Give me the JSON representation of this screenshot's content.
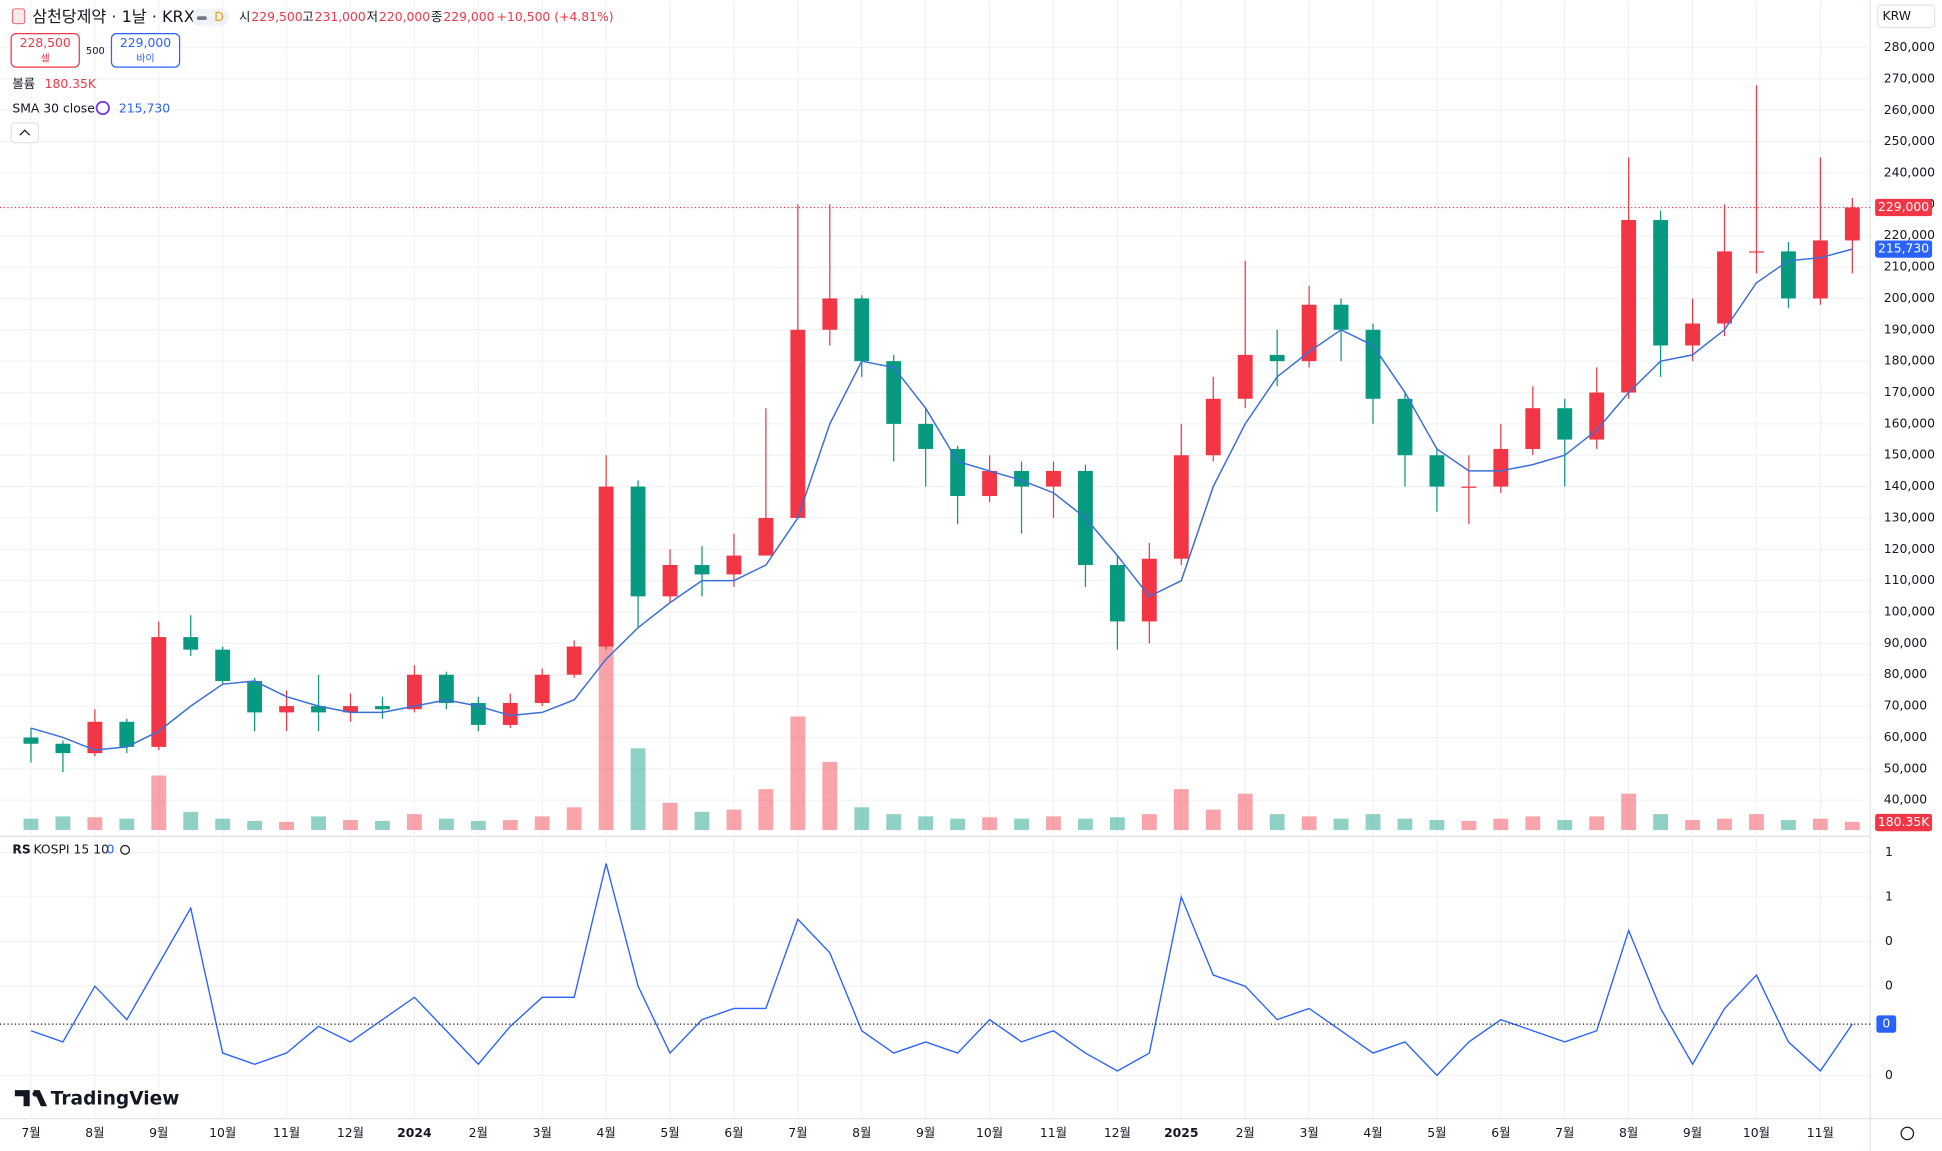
{
  "header": {
    "symbol": "삼천당제약 · 1날 · KRX",
    "interval": "D",
    "ohlc": [
      {
        "key": "시",
        "value": "229,500"
      },
      {
        "key": "고",
        "value": "231,000"
      },
      {
        "key": "저",
        "value": "220,000"
      },
      {
        "key": "종",
        "value": "229,000"
      }
    ],
    "change": "+10,500 (+4.81%)",
    "sell_price": "228,500",
    "sell_label": "셀",
    "spread": "500",
    "buy_price": "229,000",
    "buy_label": "바이",
    "currency": "KRW",
    "brand": "TradingView"
  },
  "chart_data": [
    {
      "type": "candlestick",
      "categories": [
        "7월",
        null,
        "8월",
        null,
        "9월",
        null,
        "10월",
        null,
        "11월",
        null,
        "12월",
        null,
        "2024",
        null,
        "2월",
        null,
        "3월",
        null,
        "4월",
        null,
        "5월",
        null,
        "6월",
        null,
        "7월",
        null,
        "8월",
        null,
        "9월",
        null,
        "10월",
        null,
        "11월",
        null,
        "12월",
        null,
        "2025",
        null,
        "2월",
        null,
        "3월",
        null,
        "4월",
        null,
        "5월",
        null,
        "6월",
        null,
        "7월",
        null,
        "8월",
        null,
        "9월",
        null,
        "10월",
        null,
        "11월",
        null
      ],
      "open": [
        60000,
        58000,
        55000,
        65000,
        57000,
        92000,
        88000,
        78000,
        68000,
        70000,
        68000,
        70000,
        69000,
        80000,
        71000,
        64000,
        71000,
        80000,
        89000,
        140000,
        105000,
        115000,
        112000,
        118000,
        130000,
        190000,
        200000,
        180000,
        160000,
        152000,
        137000,
        145000,
        140000,
        145000,
        115000,
        97000,
        117000,
        150000,
        168000,
        182000,
        180000,
        198000,
        190000,
        168000,
        150000,
        140000,
        140000,
        152000,
        165000,
        155000,
        170000,
        225000,
        185000,
        192000,
        215000,
        215000,
        200000,
        218500
      ],
      "high": [
        63000,
        59000,
        69000,
        66000,
        97000,
        99000,
        89000,
        79000,
        75000,
        80000,
        74000,
        73000,
        83000,
        81000,
        73000,
        74000,
        82000,
        91000,
        150000,
        142000,
        120000,
        121000,
        125000,
        165000,
        230000,
        230000,
        201000,
        182000,
        165000,
        153000,
        150000,
        148000,
        148000,
        147000,
        118000,
        122000,
        160000,
        175000,
        212000,
        190000,
        204000,
        200000,
        192000,
        170000,
        152000,
        150000,
        160000,
        172000,
        168000,
        178000,
        245000,
        228000,
        200000,
        230000,
        268000,
        218000,
        245000,
        232000
      ],
      "low": [
        52000,
        49000,
        54000,
        55000,
        56000,
        86000,
        77000,
        62000,
        62000,
        62000,
        65000,
        66000,
        68000,
        69000,
        62000,
        63000,
        70000,
        79000,
        88000,
        95000,
        103000,
        105000,
        108000,
        118000,
        130000,
        185000,
        175000,
        148000,
        140000,
        128000,
        135000,
        125000,
        130000,
        108000,
        88000,
        90000,
        115000,
        148000,
        165000,
        172000,
        178000,
        180000,
        160000,
        140000,
        132000,
        128000,
        138000,
        150000,
        140000,
        152000,
        168000,
        175000,
        180000,
        188000,
        208000,
        197000,
        198000,
        208000
      ],
      "close": [
        58000,
        55000,
        65000,
        57000,
        92000,
        88000,
        78000,
        68000,
        70000,
        68000,
        70000,
        69000,
        80000,
        71000,
        64000,
        71000,
        80000,
        89000,
        140000,
        105000,
        115000,
        112000,
        118000,
        130000,
        190000,
        200000,
        180000,
        160000,
        152000,
        137000,
        145000,
        140000,
        145000,
        115000,
        97000,
        117000,
        150000,
        168000,
        182000,
        180000,
        198000,
        190000,
        168000,
        150000,
        140000,
        140000,
        152000,
        165000,
        155000,
        170000,
        225000,
        185000,
        192000,
        215000,
        215000,
        200000,
        218500,
        229000
      ],
      "up_color": "#f23645",
      "down_color": "#089981",
      "last_price_label": "229,000",
      "volume": {
        "name": "볼륨",
        "last_label": "180.35K",
        "values": [
          250000,
          300000,
          280000,
          250000,
          1200000,
          400000,
          250000,
          200000,
          180000,
          300000,
          220000,
          200000,
          350000,
          250000,
          200000,
          220000,
          300000,
          500000,
          4500000,
          1800000,
          600000,
          400000,
          450000,
          900000,
          2500000,
          1500000,
          500000,
          350000,
          300000,
          250000,
          280000,
          250000,
          300000,
          250000,
          280000,
          350000,
          900000,
          450000,
          800000,
          350000,
          300000,
          250000,
          350000,
          250000,
          220000,
          200000,
          250000,
          300000,
          220000,
          300000,
          800000,
          350000,
          220000,
          250000,
          350000,
          220000,
          250000,
          180350
        ]
      },
      "series": [
        {
          "name": "SMA 30 close",
          "color": "#3a6fd8",
          "last_label": "215,730",
          "values": [
            63000,
            60000,
            56000,
            57000,
            62000,
            70000,
            77000,
            78000,
            73000,
            70000,
            68000,
            68000,
            70000,
            72000,
            70000,
            67000,
            68000,
            72000,
            85000,
            95000,
            103000,
            110000,
            110000,
            115000,
            130000,
            160000,
            180000,
            178000,
            165000,
            148000,
            145000,
            142000,
            138000,
            130000,
            118000,
            105000,
            110000,
            140000,
            160000,
            175000,
            183000,
            190000,
            185000,
            170000,
            152000,
            145000,
            145000,
            147000,
            150000,
            158000,
            170000,
            180000,
            182000,
            190000,
            205000,
            212000,
            213000,
            215730
          ]
        }
      ],
      "ylim": [
        29700,
        295100
      ],
      "yticks": [
        {
          "value": 40000,
          "label": "40,000"
        },
        {
          "value": 50000,
          "label": "50,000"
        },
        {
          "value": 60000,
          "label": "60,000"
        },
        {
          "value": 70000,
          "label": "70,000"
        },
        {
          "value": 80000,
          "label": "80,000"
        },
        {
          "value": 90000,
          "label": "90,000"
        },
        {
          "value": 100000,
          "label": "100,000"
        },
        {
          "value": 110000,
          "label": "110,000"
        },
        {
          "value": 120000,
          "label": "120,000"
        },
        {
          "value": 130000,
          "label": "130,000"
        },
        {
          "value": 140000,
          "label": "140,000"
        },
        {
          "value": 150000,
          "label": "150,000"
        },
        {
          "value": 160000,
          "label": "160,000"
        },
        {
          "value": 170000,
          "label": "170,000"
        },
        {
          "value": 180000,
          "label": "180,000"
        },
        {
          "value": 190000,
          "label": "190,000"
        },
        {
          "value": 200000,
          "label": "200,000"
        },
        {
          "value": 210000,
          "label": "210,000"
        },
        {
          "value": 220000,
          "label": "220,000"
        },
        {
          "value": 230000,
          "label": "230,000"
        },
        {
          "value": 240000,
          "label": "240,000"
        },
        {
          "value": 250000,
          "label": "250,000"
        },
        {
          "value": 260000,
          "label": "260,000"
        },
        {
          "value": 270000,
          "label": "270,000"
        },
        {
          "value": 280000,
          "label": "280,000"
        }
      ],
      "grid": true
    },
    {
      "type": "line",
      "title": "RS",
      "subtitle": "KOSPI 15 10",
      "last_label": "0",
      "series": [
        {
          "name": "RS",
          "color": "#2962ff",
          "values": [
            0,
            -0.05,
            0.2,
            0.05,
            0.3,
            0.55,
            -0.1,
            -0.15,
            -0.1,
            0.02,
            -0.05,
            0.05,
            0.15,
            0,
            -0.15,
            0.02,
            0.15,
            0.15,
            0.75,
            0.2,
            -0.1,
            0.05,
            0.1,
            0.1,
            0.5,
            0.35,
            0,
            -0.1,
            -0.05,
            -0.1,
            0.05,
            -0.05,
            0,
            -0.1,
            -0.18,
            -0.1,
            0.6,
            0.25,
            0.2,
            0.05,
            0.1,
            0,
            -0.1,
            -0.05,
            -0.2,
            -0.05,
            0.05,
            0,
            -0.05,
            0,
            0.45,
            0.1,
            -0.15,
            0.1,
            0.25,
            -0.05,
            -0.18,
            0.03
          ]
        }
      ],
      "ylim": [
        -0.405,
        0.845
      ],
      "yticks": [
        {
          "value": -0.2,
          "label": "0"
        },
        {
          "value": 0.2,
          "label": "0"
        },
        {
          "value": 0.4,
          "label": "0"
        },
        {
          "value": 0.6,
          "label": "1"
        },
        {
          "value": 0.8,
          "label": "1"
        }
      ]
    }
  ]
}
